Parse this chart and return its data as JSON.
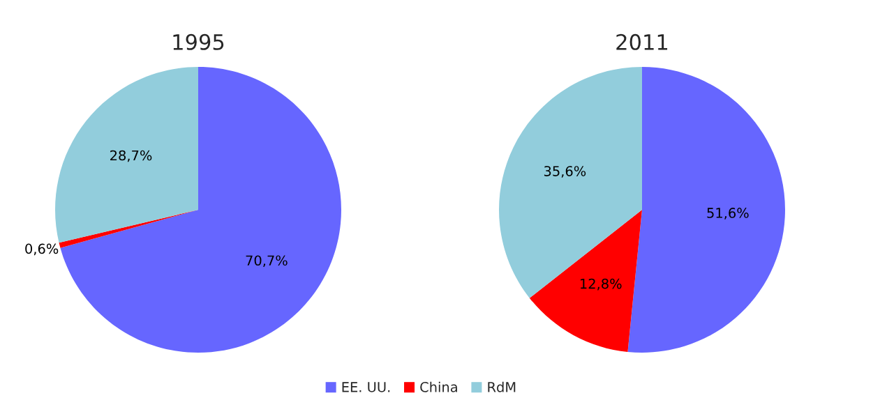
{
  "chart_data": [
    {
      "type": "pie",
      "title": "1995",
      "categories": [
        "EE. UU.",
        "China",
        "RdM"
      ],
      "values": [
        70.7,
        0.6,
        28.7
      ],
      "value_labels": [
        "70,7%",
        "0,6%",
        "28,7%"
      ],
      "colors": [
        "#6666ff",
        "#ff0000",
        "#92cddc"
      ],
      "legend": "bottom"
    },
    {
      "type": "pie",
      "title": "2011",
      "categories": [
        null,
        null,
        null
      ],
      "values": [
        51.6,
        12.8,
        35.6
      ],
      "value_labels": [
        "51,6%",
        "12,8%",
        "35,6%"
      ],
      "colors": [
        "#6666ff",
        "#ff0000",
        "#92cddc"
      ]
    }
  ]
}
